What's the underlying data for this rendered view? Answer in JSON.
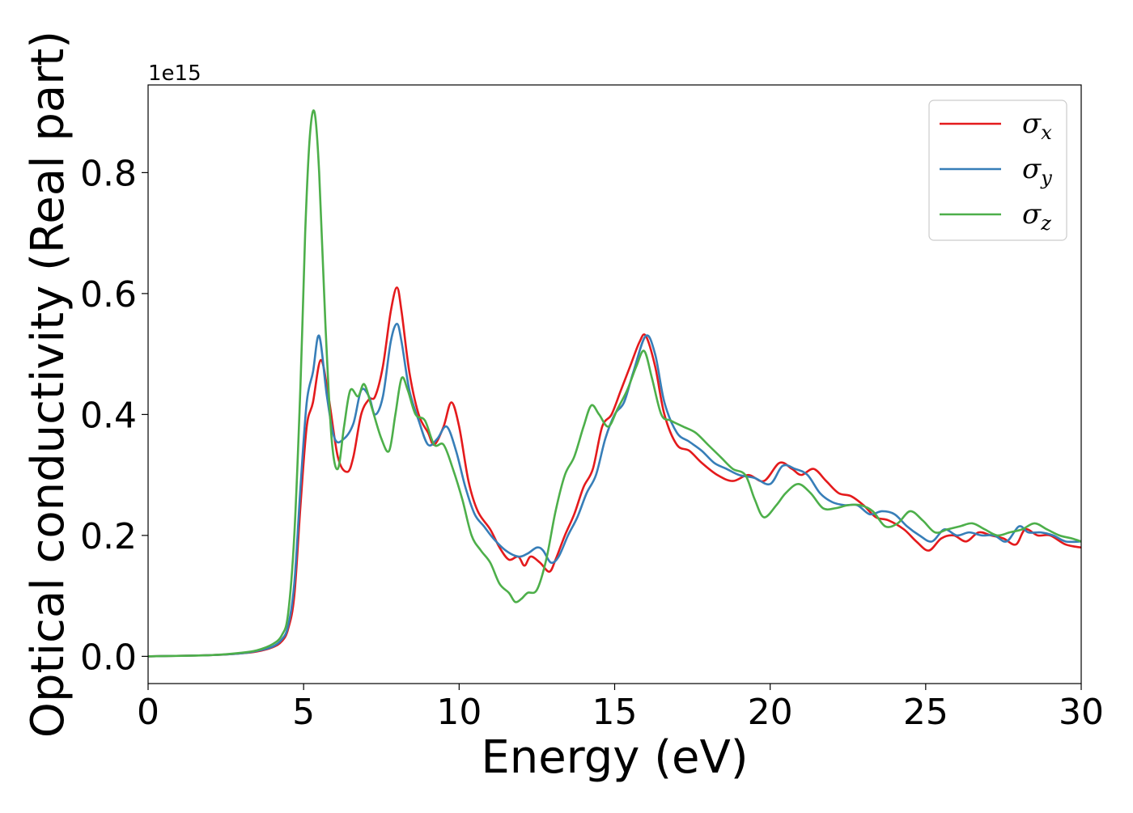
{
  "chart_data": {
    "type": "line",
    "title": "",
    "xlabel": "Energy (eV)",
    "ylabel": "Optical conductivity (Real part)",
    "y_offset_label": "1e15",
    "xlim": [
      0,
      30
    ],
    "ylim": [
      -0.045,
      0.945
    ],
    "xticks": [
      0,
      5,
      10,
      15,
      20,
      25,
      30
    ],
    "xtick_labels": [
      "0",
      "5",
      "10",
      "15",
      "20",
      "25",
      "30"
    ],
    "yticks": [
      0.0,
      0.2,
      0.4,
      0.6,
      0.8
    ],
    "ytick_labels": [
      "0.0",
      "0.2",
      "0.4",
      "0.6",
      "0.8"
    ],
    "grid": false,
    "legend_position": "top-right",
    "series": [
      {
        "name": "σ_x",
        "legend_base": "σ",
        "legend_sub": "x",
        "color": "#e41a1c",
        "x": [
          0,
          2,
          3,
          3.5,
          4.0,
          4.3,
          4.5,
          4.7,
          4.9,
          5.1,
          5.3,
          5.55,
          5.8,
          6.1,
          6.4,
          6.6,
          6.85,
          7.1,
          7.3,
          7.55,
          7.8,
          8.0,
          8.15,
          8.4,
          8.7,
          9.0,
          9.2,
          9.5,
          9.75,
          10.0,
          10.3,
          10.6,
          11.0,
          11.3,
          11.6,
          11.9,
          12.1,
          12.3,
          12.6,
          12.9,
          13.1,
          13.4,
          13.7,
          14.0,
          14.3,
          14.6,
          14.9,
          15.2,
          15.5,
          15.8,
          16.0,
          16.3,
          16.6,
          17.0,
          17.4,
          17.8,
          18.3,
          18.8,
          19.3,
          19.8,
          20.3,
          20.7,
          21.0,
          21.4,
          21.8,
          22.2,
          22.6,
          23.0,
          23.4,
          23.8,
          24.3,
          24.7,
          25.1,
          25.5,
          25.9,
          26.3,
          26.7,
          27.1,
          27.5,
          27.9,
          28.2,
          28.6,
          29.0,
          29.5,
          30.0
        ],
        "values": [
          0.0,
          0.002,
          0.005,
          0.008,
          0.015,
          0.025,
          0.045,
          0.1,
          0.25,
          0.38,
          0.42,
          0.49,
          0.43,
          0.33,
          0.305,
          0.33,
          0.4,
          0.425,
          0.43,
          0.48,
          0.57,
          0.61,
          0.57,
          0.47,
          0.4,
          0.37,
          0.35,
          0.38,
          0.42,
          0.38,
          0.29,
          0.24,
          0.21,
          0.18,
          0.16,
          0.165,
          0.15,
          0.165,
          0.155,
          0.14,
          0.16,
          0.2,
          0.235,
          0.28,
          0.31,
          0.38,
          0.4,
          0.44,
          0.48,
          0.52,
          0.53,
          0.48,
          0.4,
          0.35,
          0.34,
          0.32,
          0.3,
          0.29,
          0.3,
          0.29,
          0.32,
          0.31,
          0.3,
          0.31,
          0.29,
          0.27,
          0.265,
          0.25,
          0.23,
          0.225,
          0.21,
          0.19,
          0.175,
          0.195,
          0.2,
          0.19,
          0.205,
          0.2,
          0.195,
          0.185,
          0.21,
          0.2,
          0.2,
          0.185,
          0.18
        ]
      },
      {
        "name": "σ_y",
        "legend_base": "σ",
        "legend_sub": "y",
        "color": "#377eb8",
        "x": [
          0,
          2,
          3,
          3.5,
          4.0,
          4.3,
          4.5,
          4.7,
          4.9,
          5.1,
          5.3,
          5.5,
          5.75,
          6.0,
          6.3,
          6.6,
          6.85,
          7.1,
          7.3,
          7.55,
          7.8,
          8.0,
          8.15,
          8.4,
          8.7,
          9.0,
          9.3,
          9.6,
          9.9,
          10.2,
          10.5,
          10.8,
          11.1,
          11.5,
          11.9,
          12.2,
          12.5,
          12.7,
          12.95,
          13.2,
          13.5,
          13.8,
          14.1,
          14.4,
          14.7,
          15.0,
          15.3,
          15.6,
          16.0,
          16.3,
          16.6,
          17.0,
          17.4,
          17.8,
          18.2,
          18.6,
          19.0,
          19.5,
          20.0,
          20.4,
          20.8,
          21.2,
          21.6,
          22.0,
          22.4,
          22.8,
          23.2,
          23.6,
          24.0,
          24.4,
          24.8,
          25.2,
          25.6,
          26.0,
          26.4,
          26.8,
          27.2,
          27.6,
          28.0,
          28.3,
          28.7,
          29.1,
          29.5,
          30.0
        ],
        "values": [
          0.0,
          0.002,
          0.005,
          0.009,
          0.016,
          0.028,
          0.05,
          0.12,
          0.28,
          0.42,
          0.47,
          0.53,
          0.43,
          0.36,
          0.36,
          0.385,
          0.44,
          0.43,
          0.4,
          0.43,
          0.52,
          0.55,
          0.52,
          0.44,
          0.39,
          0.35,
          0.36,
          0.38,
          0.34,
          0.28,
          0.235,
          0.215,
          0.195,
          0.175,
          0.165,
          0.17,
          0.18,
          0.175,
          0.155,
          0.165,
          0.2,
          0.23,
          0.27,
          0.3,
          0.36,
          0.4,
          0.42,
          0.47,
          0.53,
          0.5,
          0.42,
          0.37,
          0.355,
          0.34,
          0.32,
          0.31,
          0.3,
          0.295,
          0.285,
          0.315,
          0.31,
          0.3,
          0.27,
          0.255,
          0.25,
          0.25,
          0.235,
          0.24,
          0.235,
          0.215,
          0.2,
          0.19,
          0.21,
          0.2,
          0.205,
          0.2,
          0.2,
          0.19,
          0.215,
          0.205,
          0.205,
          0.2,
          0.19,
          0.19
        ]
      },
      {
        "name": "σ_z",
        "legend_base": "σ",
        "legend_sub": "z",
        "color": "#4daf4a",
        "x": [
          0,
          2,
          3,
          3.5,
          4.0,
          4.3,
          4.5,
          4.7,
          4.9,
          5.05,
          5.2,
          5.35,
          5.5,
          5.7,
          5.9,
          6.1,
          6.3,
          6.5,
          6.75,
          6.95,
          7.2,
          7.5,
          7.75,
          7.95,
          8.15,
          8.35,
          8.6,
          8.9,
          9.2,
          9.5,
          9.8,
          10.1,
          10.4,
          10.7,
          11.0,
          11.3,
          11.6,
          11.8,
          12.0,
          12.2,
          12.5,
          12.8,
          13.1,
          13.4,
          13.7,
          14.0,
          14.25,
          14.5,
          14.8,
          15.1,
          15.4,
          15.7,
          15.95,
          16.2,
          16.5,
          16.8,
          17.2,
          17.6,
          18.0,
          18.4,
          18.8,
          19.2,
          19.5,
          19.8,
          20.2,
          20.5,
          20.9,
          21.3,
          21.7,
          22.1,
          22.5,
          22.9,
          23.3,
          23.7,
          24.1,
          24.5,
          24.9,
          25.3,
          25.7,
          26.1,
          26.5,
          26.9,
          27.3,
          27.7,
          28.1,
          28.5,
          28.9,
          29.3,
          29.7,
          30.0
        ],
        "values": [
          0.0,
          0.002,
          0.006,
          0.01,
          0.02,
          0.035,
          0.07,
          0.2,
          0.45,
          0.7,
          0.86,
          0.9,
          0.8,
          0.55,
          0.36,
          0.31,
          0.38,
          0.44,
          0.43,
          0.45,
          0.41,
          0.36,
          0.34,
          0.4,
          0.46,
          0.44,
          0.4,
          0.39,
          0.35,
          0.35,
          0.31,
          0.26,
          0.2,
          0.175,
          0.155,
          0.12,
          0.105,
          0.09,
          0.095,
          0.105,
          0.11,
          0.16,
          0.24,
          0.3,
          0.33,
          0.38,
          0.415,
          0.4,
          0.38,
          0.41,
          0.44,
          0.48,
          0.505,
          0.46,
          0.4,
          0.39,
          0.38,
          0.37,
          0.35,
          0.33,
          0.31,
          0.3,
          0.26,
          0.23,
          0.25,
          0.27,
          0.285,
          0.27,
          0.245,
          0.245,
          0.25,
          0.25,
          0.24,
          0.215,
          0.22,
          0.24,
          0.225,
          0.205,
          0.21,
          0.215,
          0.22,
          0.21,
          0.2,
          0.205,
          0.21,
          0.22,
          0.21,
          0.2,
          0.195,
          0.19
        ]
      }
    ]
  }
}
